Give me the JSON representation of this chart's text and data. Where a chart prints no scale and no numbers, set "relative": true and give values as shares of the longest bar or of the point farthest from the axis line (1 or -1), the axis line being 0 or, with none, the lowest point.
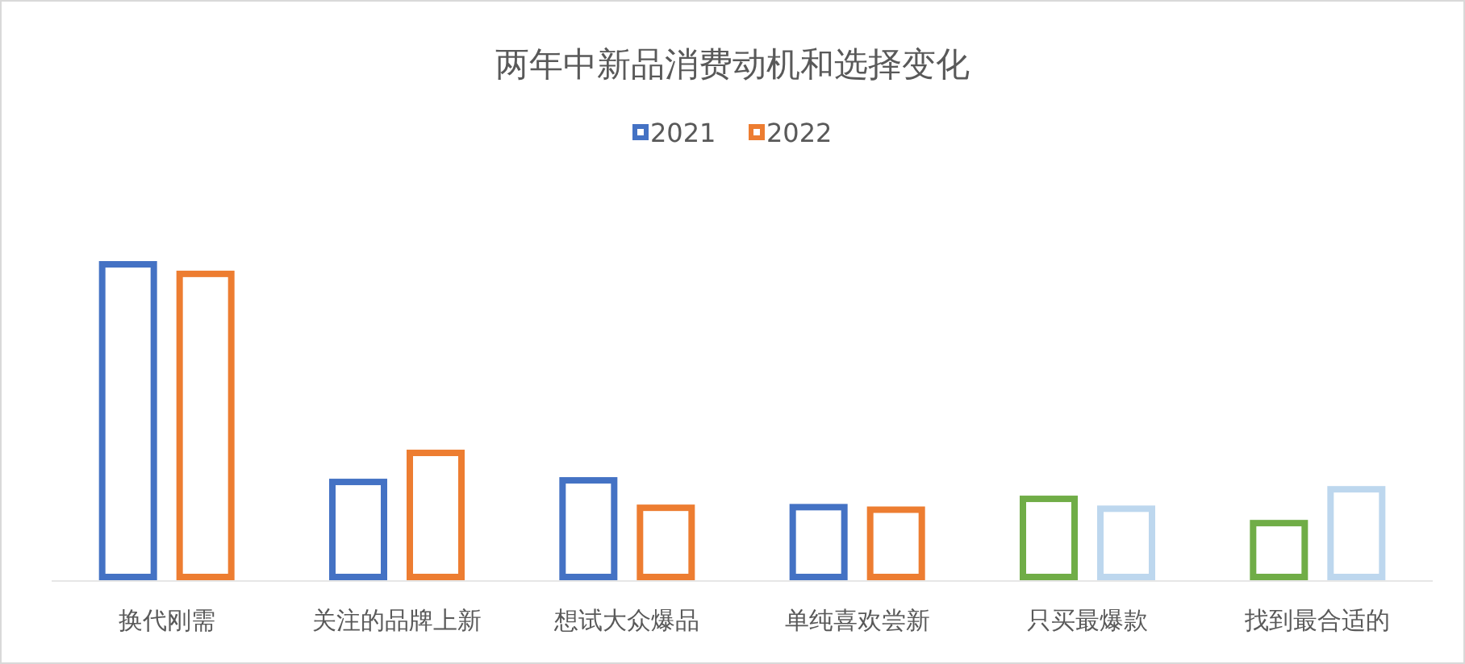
{
  "chart_data": {
    "type": "bar",
    "title": "两年中新品消费动机和选择变化",
    "relative": true,
    "legend": "top",
    "categories": [
      "换代刚需",
      "关注的品牌上新",
      "想试大众爆品",
      "单纯喜欢尝新",
      "只买最爆款",
      "找到最合适的"
    ],
    "series": [
      {
        "name": "2021",
        "color": "#4472c4",
        "colors": [
          "#4472c4",
          "#4472c4",
          "#4472c4",
          "#4472c4",
          "#70ad47",
          "#70ad47"
        ],
        "values": [
          1,
          0.318,
          0.323,
          0.239,
          0.265,
          0.189
        ]
      },
      {
        "name": "2022",
        "color": "#ed7d31",
        "colors": [
          "#ed7d31",
          "#ed7d31",
          "#ed7d31",
          "#ed7d31",
          "#bdd7ee",
          "#bdd7ee"
        ],
        "values": [
          0.97,
          0.409,
          0.237,
          0.231,
          0.234,
          0.295
        ]
      }
    ]
  }
}
